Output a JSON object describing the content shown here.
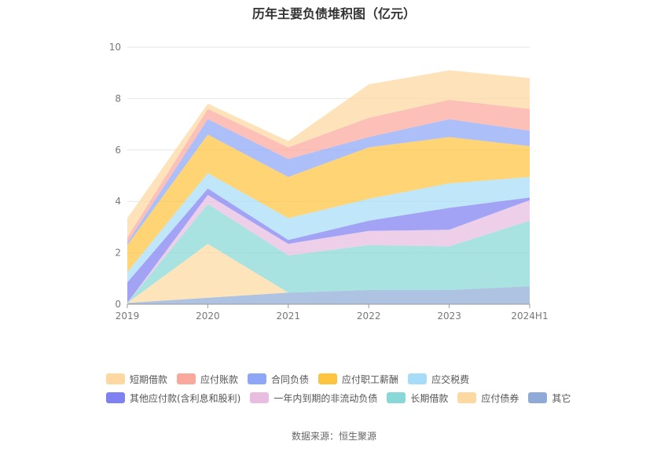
{
  "chart_data": {
    "type": "area",
    "stacked": true,
    "title": "历年主要负债堆积图（亿元）",
    "categories": [
      "2019",
      "2020",
      "2021",
      "2022",
      "2023",
      "2024H1"
    ],
    "ylim": [
      0,
      10
    ],
    "yticks": [
      0,
      2,
      4,
      6,
      8,
      10
    ],
    "grid": true,
    "legend_position": "bottom",
    "series": [
      {
        "name": "其它",
        "color": "#8faad6",
        "values": [
          0.05,
          0.25,
          0.45,
          0.55,
          0.55,
          0.7
        ]
      },
      {
        "name": "应付债券",
        "color": "#fcd9a0",
        "values": [
          0.0,
          2.1,
          0.0,
          0.0,
          0.0,
          0.0
        ]
      },
      {
        "name": "长期借款",
        "color": "#87d8d6",
        "values": [
          0.0,
          1.55,
          1.45,
          1.75,
          1.7,
          2.55
        ]
      },
      {
        "name": "一年内到期的非流动负债",
        "color": "#e8bde0",
        "values": [
          0.0,
          0.35,
          0.45,
          0.55,
          0.65,
          0.8
        ]
      },
      {
        "name": "其他应付款(含利息和股利)",
        "color": "#7f80f2",
        "values": [
          0.8,
          0.25,
          0.15,
          0.4,
          0.85,
          0.1
        ]
      },
      {
        "name": "应交税费",
        "color": "#a6dcf7",
        "values": [
          0.4,
          0.6,
          0.85,
          0.85,
          0.95,
          0.8
        ]
      },
      {
        "name": "应付职工薪酬",
        "color": "#fdc43f",
        "values": [
          1.05,
          1.5,
          1.6,
          2.0,
          1.8,
          1.2
        ]
      },
      {
        "name": "合同负债",
        "color": "#8ea6f6",
        "values": [
          0.1,
          0.6,
          0.7,
          0.4,
          0.7,
          0.6
        ]
      },
      {
        "name": "应付账款",
        "color": "#fba89c",
        "values": [
          0.2,
          0.4,
          0.45,
          0.75,
          0.75,
          0.85
        ]
      },
      {
        "name": "短期借款",
        "color": "#fdd8a0",
        "values": [
          0.75,
          0.2,
          0.25,
          1.3,
          1.15,
          1.2
        ]
      }
    ]
  },
  "legend": {
    "row1": [
      "短期借款",
      "应付账款",
      "合同负债",
      "应付职工薪酬",
      "应交税费"
    ],
    "row2": [
      "其他应付款(含利息和股利)",
      "一年内到期的非流动负债",
      "长期借款",
      "应付债券",
      "其它"
    ],
    "colors": {
      "短期借款": "#fdd8a0",
      "应付账款": "#fba89c",
      "合同负债": "#8ea6f6",
      "应付职工薪酬": "#fdc43f",
      "应交税费": "#a6dcf7",
      "其他应付款(含利息和股利)": "#7f80f2",
      "一年内到期的非流动负债": "#e8bde0",
      "长期借款": "#87d8d6",
      "应付债券": "#fcd9a0",
      "其它": "#8faad6"
    }
  },
  "source": "数据来源：恒生聚源"
}
